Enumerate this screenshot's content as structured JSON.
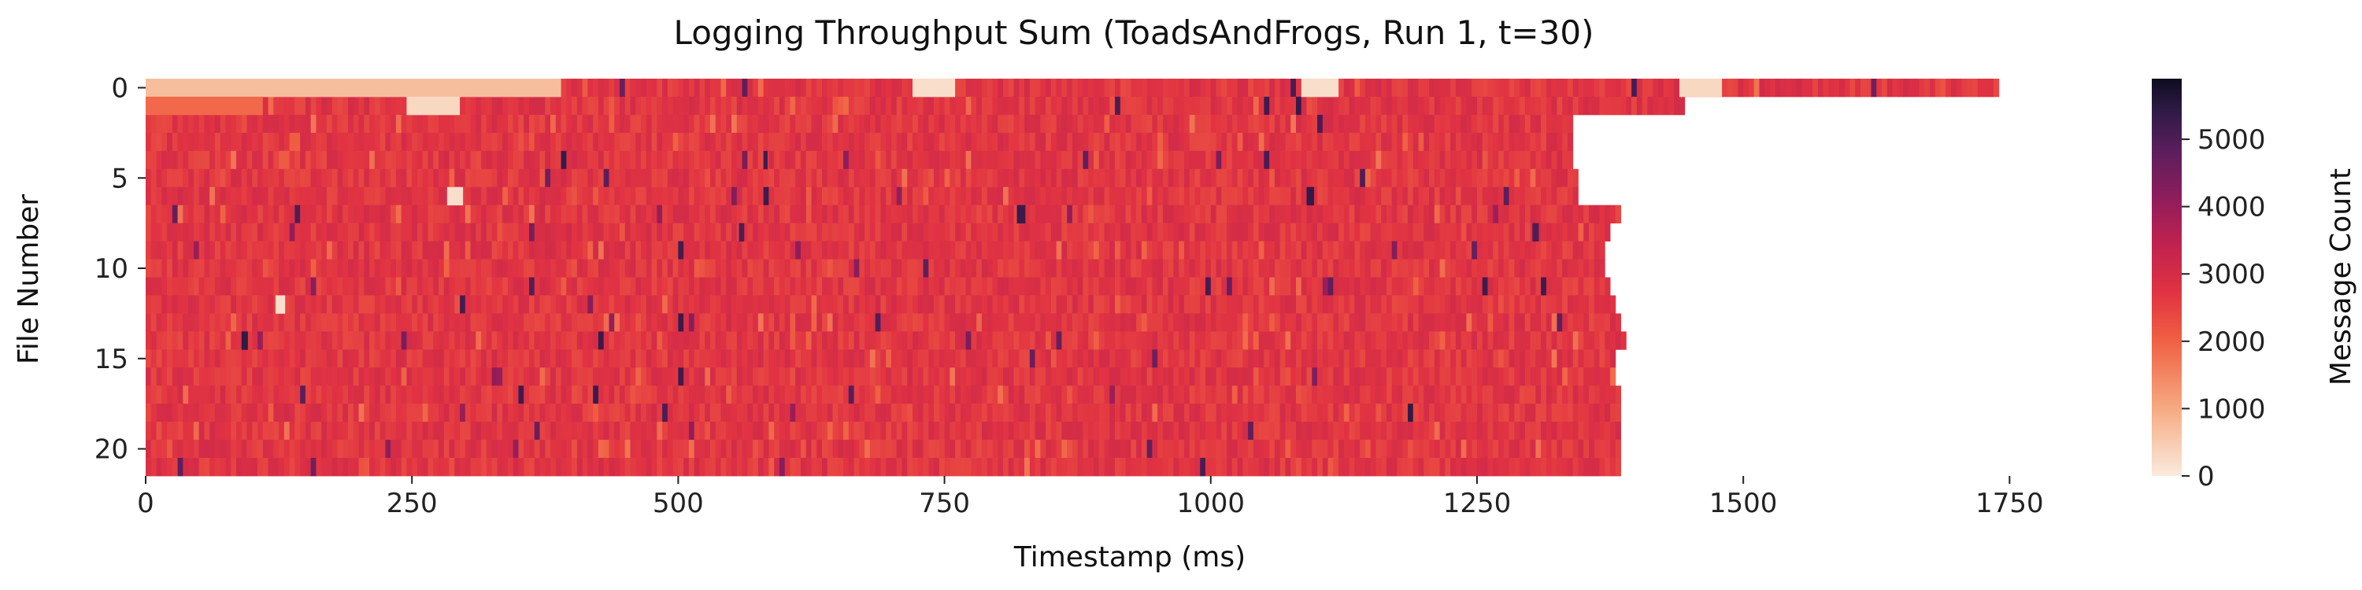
{
  "chart_data": {
    "type": "heatmap",
    "title": "Logging Throughput Sum (ToadsAndFrogs, Run 1, t=30)",
    "xlabel": "Timestamp (ms)",
    "ylabel": "File Number",
    "xlim": [
      0,
      1800
    ],
    "ylim": [
      0,
      22
    ],
    "x_ticks": [
      0,
      250,
      500,
      750,
      1000,
      1250,
      1500,
      1750
    ],
    "y_ticks": [
      0,
      5,
      10,
      15,
      20
    ],
    "colorbar": {
      "label": "Message Count",
      "min": 0,
      "max": 5900,
      "ticks": [
        0,
        1000,
        2000,
        3000,
        4000,
        5000
      ],
      "colormap": "rocket_r"
    },
    "typical_value": 2700,
    "row_lengths_ms": [
      1740,
      1445,
      1340,
      1340,
      1340,
      1345,
      1345,
      1385,
      1375,
      1370,
      1370,
      1375,
      1380,
      1385,
      1390,
      1380,
      1380,
      1385,
      1385,
      1385,
      1385,
      1385
    ],
    "row_lengths_second_segment_ms": [
      770,
      770
    ],
    "low_value_regions": [
      {
        "file": 0,
        "start_ms": 0,
        "end_ms": 390,
        "value": 700
      },
      {
        "file": 0,
        "start_ms": 720,
        "end_ms": 760,
        "value": 200
      },
      {
        "file": 0,
        "start_ms": 1085,
        "end_ms": 1120,
        "value": 200
      },
      {
        "file": 0,
        "start_ms": 1440,
        "end_ms": 1480,
        "value": 300
      },
      {
        "file": 1,
        "start_ms": 245,
        "end_ms": 295,
        "value": 300
      },
      {
        "file": 1,
        "start_ms": 0,
        "end_ms": 110,
        "value": 1900
      },
      {
        "file": 6,
        "start_ms": 283,
        "end_ms": 298,
        "value": 200
      },
      {
        "file": 12,
        "start_ms": 122,
        "end_ms": 131,
        "value": 200
      }
    ],
    "high_value_spots": [
      {
        "file": 4,
        "start_ms": 580,
        "end_ms": 584,
        "value": 5200
      },
      {
        "file": 6,
        "start_ms": 1090,
        "end_ms": 1097,
        "value": 5400
      },
      {
        "file": 7,
        "start_ms": 818,
        "end_ms": 826,
        "value": 5300
      },
      {
        "file": 8,
        "start_ms": 557,
        "end_ms": 562,
        "value": 5000
      },
      {
        "file": 8,
        "start_ms": 1302,
        "end_ms": 1308,
        "value": 5000
      },
      {
        "file": 14,
        "start_ms": 90,
        "end_ms": 96,
        "value": 5400
      }
    ]
  }
}
